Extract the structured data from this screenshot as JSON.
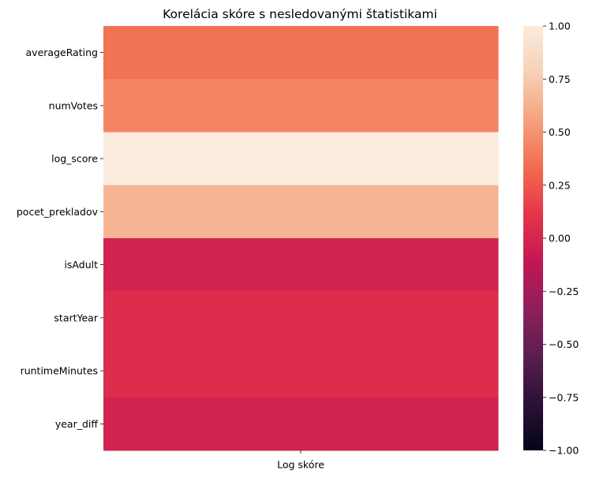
{
  "chart_data": {
    "type": "heatmap",
    "title": "Korelácia skóre s nesledovanými štatistikami",
    "xlabel": "",
    "ylabel": "",
    "x_categories": [
      "Log skóre"
    ],
    "y_categories": [
      "averageRating",
      "numVotes",
      "log_score",
      "pocet_prekladov",
      "isAdult",
      "startYear",
      "runtimeMinutes",
      "year_diff"
    ],
    "values": [
      [
        0.36
      ],
      [
        0.44
      ],
      [
        1.0
      ],
      [
        0.65
      ],
      [
        -0.02
      ],
      [
        0.06
      ],
      [
        0.06
      ],
      [
        -0.02
      ]
    ],
    "colorbar": {
      "vmin": -1.0,
      "vmax": 1.0,
      "ticks": [
        "1.00",
        "0.75",
        "0.50",
        "0.25",
        "0.00",
        "−0.25",
        "−0.50",
        "−0.75",
        "−1.00"
      ],
      "tick_values": [
        1.0,
        0.75,
        0.5,
        0.25,
        0.0,
        -0.25,
        -0.5,
        -0.75,
        -1.0
      ]
    },
    "colormap": [
      "#03051a",
      "#2b1137",
      "#5b1e51",
      "#8e1f5c",
      "#c11754",
      "#e6344a",
      "#f26c4f",
      "#f5a17c",
      "#f6d0b6",
      "#faebdd"
    ],
    "grid": false
  }
}
